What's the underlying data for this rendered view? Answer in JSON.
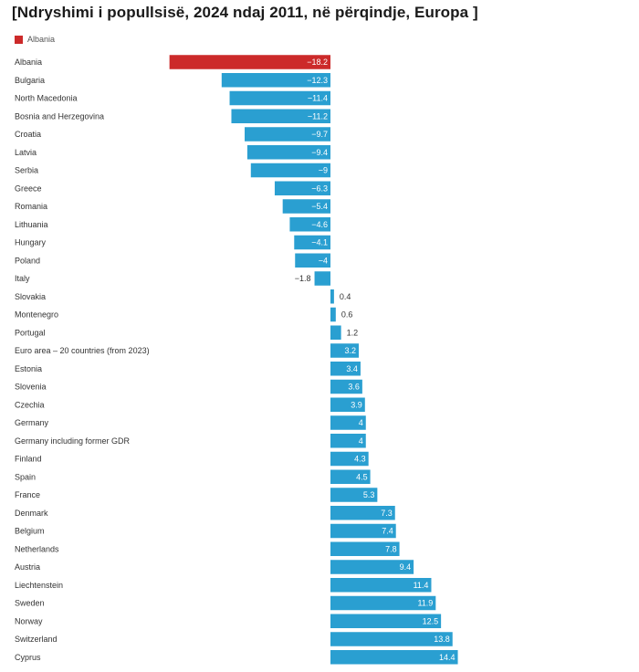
{
  "title": "[Ndryshimi i popullsisë, 2024 ndaj 2011, në përqindje, Europa ]",
  "legend": {
    "label": "Albania",
    "color": "#cc2a2a"
  },
  "colors": {
    "highlight": "#cc2a2a",
    "bar": "#2a9fd1"
  },
  "chart_data": {
    "type": "bar",
    "orientation": "horizontal",
    "title": "[Ndryshimi i popullsisë, 2024 ndaj 2011, në përqindje, Europa ]",
    "highlight": "Albania",
    "categories": [
      "Albania",
      "Bulgaria",
      "North Macedonia",
      "Bosnia and Herzegovina",
      "Croatia",
      "Latvia",
      "Serbia",
      "Greece",
      "Romania",
      "Lithuania",
      "Hungary",
      "Poland",
      "Italy",
      "Slovakia",
      "Montenegro",
      "Portugal",
      "Euro area – 20 countries (from 2023)",
      "Estonia",
      "Slovenia",
      "Czechia",
      "Germany",
      "Germany including former GDR",
      "Finland",
      "Spain",
      "France",
      "Denmark",
      "Belgium",
      "Netherlands",
      "Austria",
      "Liechtenstein",
      "Sweden",
      "Norway",
      "Switzerland",
      "Cyprus"
    ],
    "values": [
      -18.2,
      -12.3,
      -11.4,
      -11.2,
      -9.7,
      -9.4,
      -9,
      -6.3,
      -5.4,
      -4.6,
      -4.1,
      -4,
      -1.8,
      0.4,
      0.6,
      1.2,
      3.2,
      3.4,
      3.6,
      3.9,
      4,
      4,
      4.3,
      4.5,
      5.3,
      7.3,
      7.4,
      7.8,
      9.4,
      11.4,
      11.9,
      12.5,
      13.8,
      14.4
    ],
    "labels": [
      "−18.2",
      "−12.3",
      "−11.4",
      "−11.2",
      "−9.7",
      "−9.4",
      "−9",
      "−6.3",
      "−5.4",
      "−4.6",
      "−4.1",
      "−4",
      "−1.8",
      "0.4",
      "0.6",
      "1.2",
      "3.2",
      "3.4",
      "3.6",
      "3.9",
      "4",
      "4",
      "4.3",
      "4.5",
      "5.3",
      "7.3",
      "7.4",
      "7.8",
      "9.4",
      "11.4",
      "11.9",
      "12.5",
      "13.8",
      "14.4"
    ]
  }
}
